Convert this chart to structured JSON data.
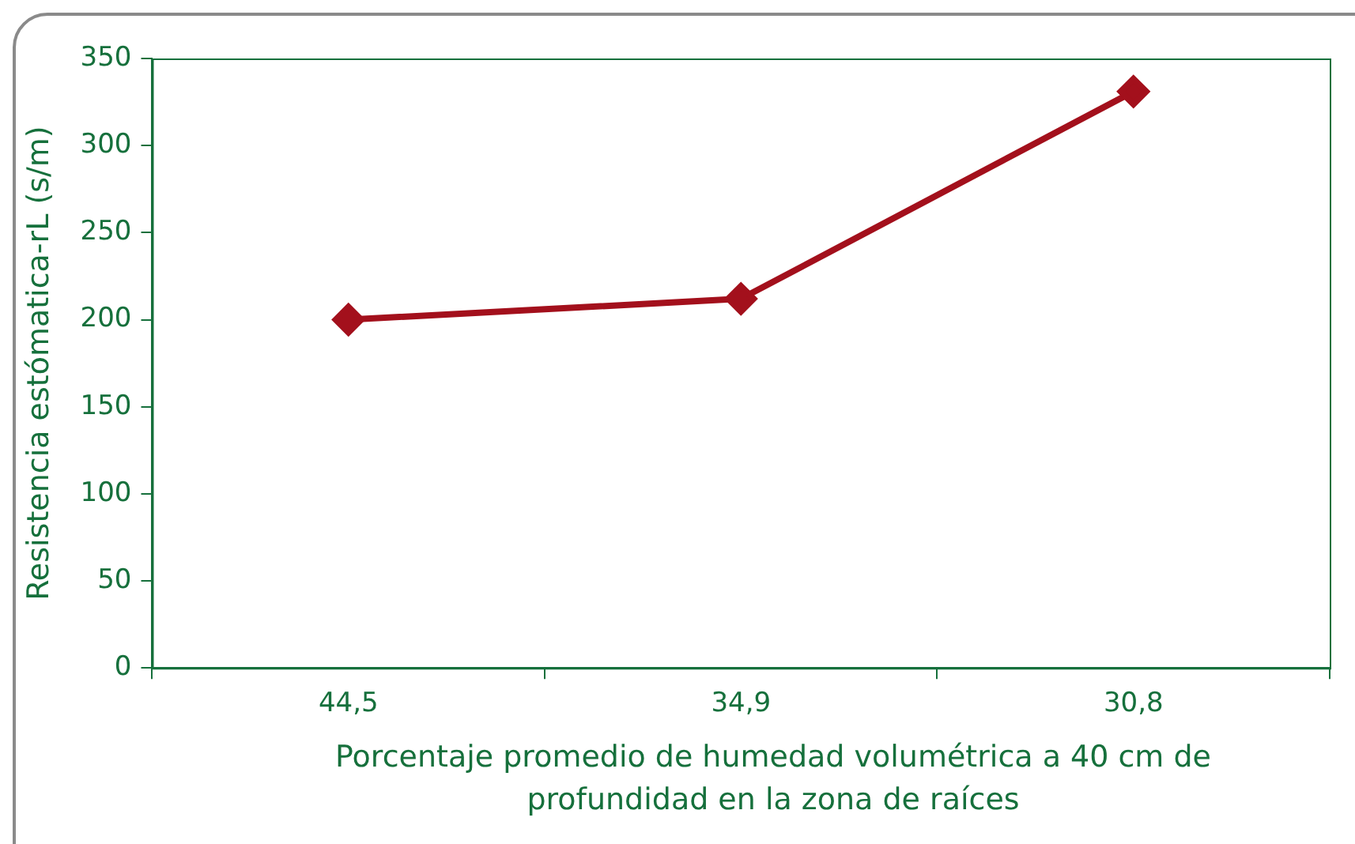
{
  "chart_data": {
    "type": "line",
    "xlabel": "Porcentaje promedio de humedad volumétrica a 40 cm de profundidad en la zona de raíces",
    "ylabel": "Resistencia estómatica-rL (s/m)",
    "categories": [
      "44,5",
      "34,9",
      "30,8"
    ],
    "series": [
      {
        "color": "#a3101c",
        "values": [
          200,
          212,
          331
        ]
      }
    ],
    "ylim": [
      0,
      350
    ],
    "yticks": [
      0,
      50,
      100,
      150,
      200,
      250,
      300,
      350
    ],
    "grid": false,
    "legend": false,
    "marker": "diamond",
    "line_style": "solid"
  }
}
